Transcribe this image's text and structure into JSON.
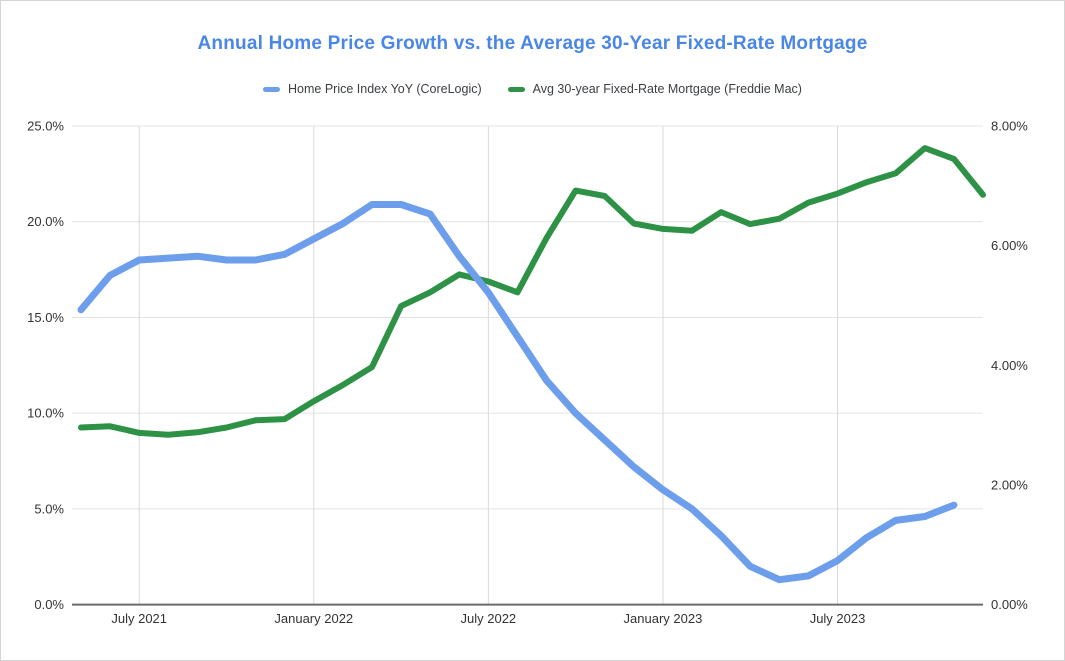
{
  "chart_data": {
    "type": "line",
    "title": "Annual Home Price Growth vs. the Average 30-Year Fixed-Rate Mortgage",
    "title_color": "#4a86e8",
    "grid": true,
    "legend_position": "top-center",
    "x_months": [
      "May 2021",
      "June 2021",
      "July 2021",
      "August 2021",
      "September 2021",
      "October 2021",
      "November 2021",
      "December 2021",
      "January 2022",
      "February 2022",
      "March 2022",
      "April 2022",
      "May 2022",
      "June 2022",
      "July 2022",
      "August 2022",
      "September 2022",
      "October 2022",
      "November 2022",
      "December 2022",
      "January 2023",
      "February 2023",
      "March 2023",
      "April 2023",
      "May 2023",
      "June 2023",
      "July 2023",
      "August 2023",
      "September 2023",
      "October 2023",
      "November 2023",
      "December 2023"
    ],
    "x_ticks": [
      {
        "label": "July 2021",
        "month_index": 2
      },
      {
        "label": "January 2022",
        "month_index": 8
      },
      {
        "label": "July 2022",
        "month_index": 14
      },
      {
        "label": "January 2023",
        "month_index": 20
      },
      {
        "label": "July 2023",
        "month_index": 26
      }
    ],
    "left_axis": {
      "tick_labels": [
        "0.0%",
        "5.0%",
        "10.0%",
        "15.0%",
        "20.0%",
        "25.0%"
      ],
      "tick_values": [
        0,
        5,
        10,
        15,
        20,
        25
      ],
      "min": 0,
      "max": 25
    },
    "right_axis": {
      "tick_labels": [
        "0.00%",
        "2.00%",
        "4.00%",
        "6.00%",
        "8.00%"
      ],
      "tick_values": [
        0,
        2,
        4,
        6,
        8
      ],
      "min": 0,
      "max": 8
    },
    "series": [
      {
        "name": "Home Price Index YoY (CoreLogic)",
        "color": "#6d9eeb",
        "axis": "left",
        "values": [
          15.4,
          17.2,
          18.0,
          18.1,
          18.2,
          18.0,
          18.0,
          18.3,
          19.1,
          19.9,
          20.9,
          20.9,
          20.4,
          18.2,
          16.3,
          14.0,
          11.7,
          10.0,
          8.6,
          7.2,
          6.0,
          5.0,
          3.6,
          2.0,
          1.3,
          1.5,
          2.3,
          3.5,
          4.4,
          4.6,
          5.2
        ]
      },
      {
        "name": "Avg 30-year Fixed-Rate Mortgage (Freddie Mac)",
        "color": "#2e9246",
        "axis": "right",
        "values": [
          2.96,
          2.98,
          2.87,
          2.84,
          2.88,
          2.96,
          3.08,
          3.1,
          3.4,
          3.67,
          3.97,
          4.99,
          5.22,
          5.52,
          5.4,
          5.22,
          6.13,
          6.92,
          6.83,
          6.37,
          6.28,
          6.25,
          6.56,
          6.36,
          6.45,
          6.72,
          6.87,
          7.06,
          7.21,
          7.63,
          7.45,
          6.85
        ]
      }
    ],
    "colors": {
      "h_gridline": "#e3e3e3",
      "v_gridline": "#d9d9d9",
      "axis_line": "#6b6b6b",
      "axis_text": "#333333"
    }
  }
}
